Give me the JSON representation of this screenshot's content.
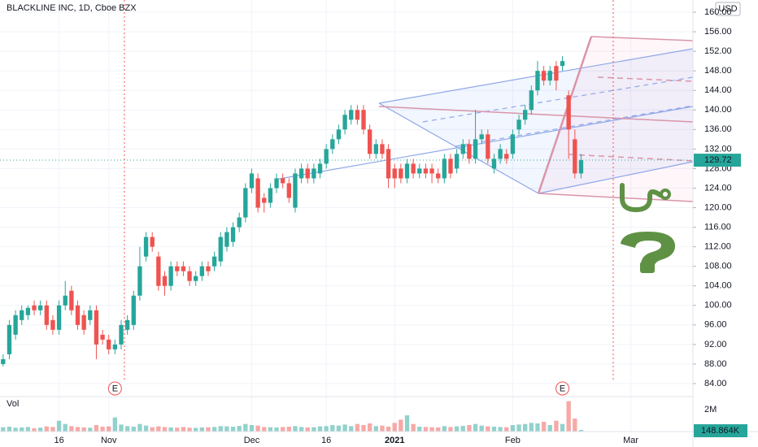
{
  "chart_data": {
    "type": "candlestick",
    "title": "BLACKLINE INC, 1D, Cboe BZX",
    "currency": "USD",
    "volume_label": "Vol",
    "open": [
      88,
      90,
      94,
      97,
      98,
      100,
      99,
      100,
      97,
      95,
      100,
      103,
      100,
      98,
      97,
      99,
      94,
      93,
      91,
      92,
      95,
      96,
      102,
      110,
      114,
      110,
      106,
      104,
      108,
      108,
      107,
      105,
      106,
      108,
      108,
      109,
      112,
      113,
      116,
      118,
      124,
      126,
      122,
      121,
      124,
      126,
      125,
      120,
      126,
      128,
      126,
      127,
      129,
      132,
      134,
      136,
      138,
      140,
      140,
      136,
      131,
      133,
      132,
      128,
      128,
      126,
      129,
      127,
      128,
      128,
      127,
      126,
      130,
      128,
      131,
      133,
      130,
      134,
      135,
      128,
      130,
      131,
      131,
      136,
      138,
      140,
      144,
      148,
      146,
      149,
      149,
      143,
      134,
      127
    ],
    "high": [
      90,
      97,
      99,
      100,
      100,
      101,
      101,
      101,
      98,
      101,
      105,
      104,
      101,
      99,
      100,
      100,
      95,
      94,
      93,
      97,
      98,
      103,
      112,
      115,
      115,
      111,
      107,
      109,
      109,
      109,
      108,
      107,
      109,
      109,
      111,
      115,
      116,
      117,
      119,
      125,
      128,
      127,
      123,
      125,
      127,
      127,
      126,
      128,
      129,
      129,
      129,
      130,
      133,
      135,
      137,
      140,
      141,
      141,
      141,
      137,
      134,
      134,
      133,
      129,
      129,
      130,
      130,
      129,
      129,
      129,
      128,
      131,
      131,
      132,
      134,
      134,
      140,
      136,
      136,
      131,
      133,
      132,
      136,
      139,
      141,
      145,
      150,
      149,
      149,
      150,
      151,
      144,
      136,
      131
    ],
    "low": [
      87.5,
      89,
      93,
      96,
      97,
      98,
      98,
      95,
      94,
      94,
      99,
      98,
      95,
      94,
      96,
      89,
      92,
      90,
      90,
      91,
      94,
      95,
      101,
      109,
      111,
      103,
      102,
      103,
      106,
      106,
      104,
      104,
      105,
      106,
      107,
      108,
      111,
      112,
      115,
      117,
      123,
      119,
      119,
      120,
      123,
      124,
      121,
      119,
      125,
      125,
      125,
      126,
      128,
      131,
      133,
      135,
      137,
      137,
      135,
      130,
      130,
      130,
      124,
      124,
      125,
      125,
      126,
      126,
      126,
      125,
      125,
      125,
      126,
      127,
      130,
      129,
      129,
      133,
      129,
      127,
      129,
      129,
      130,
      135,
      137,
      139,
      143,
      145,
      145,
      144,
      148,
      130,
      126,
      126
    ],
    "close": [
      89,
      96,
      98,
      99,
      99.5,
      99,
      100,
      96,
      95,
      100,
      102,
      99,
      96,
      95,
      99,
      92,
      93,
      91,
      92,
      96,
      97,
      102,
      108,
      114,
      112,
      104,
      104,
      108,
      107,
      107,
      105,
      106,
      108,
      107,
      110,
      114,
      115,
      116,
      118,
      124,
      127,
      120,
      121,
      124,
      126,
      125,
      122,
      127,
      128,
      126,
      128,
      129,
      132,
      134,
      136,
      139,
      140,
      138,
      136,
      131,
      133,
      131,
      126,
      126,
      126,
      129,
      127,
      128,
      127,
      127,
      126,
      130,
      127,
      131,
      133,
      130,
      134,
      135,
      130,
      130,
      132,
      130,
      135,
      138,
      140,
      144,
      148,
      146,
      148,
      146,
      150,
      136,
      127,
      129.72
    ],
    "volume": [
      400000,
      450000,
      350000,
      380000,
      420000,
      300000,
      360000,
      480000,
      420000,
      1000000,
      700000,
      500000,
      420000,
      380000,
      350000,
      600000,
      450000,
      480000,
      1300000,
      650000,
      500000,
      450000,
      700000,
      550000,
      400000,
      480000,
      420000,
      380000,
      360000,
      420000,
      350000,
      330000,
      380000,
      400000,
      420000,
      500000,
      480000,
      450000,
      520000,
      700000,
      600000,
      550000,
      420000,
      400000,
      380000,
      420000,
      450000,
      500000,
      420000,
      380000,
      400000,
      480000,
      500000,
      600000,
      550000,
      650000,
      500000,
      700000,
      600000,
      750000,
      500000,
      550000,
      450000,
      800000,
      1100000,
      1500000,
      700000,
      450000,
      420000,
      400000,
      380000,
      500000,
      420000,
      480000,
      520000,
      600000,
      700000,
      550000,
      480000,
      450000,
      420000,
      400000,
      600000,
      650000,
      700000,
      800000,
      750000,
      900000,
      600000,
      1000000,
      700000,
      2800000,
      1200000,
      148864
    ],
    "volume_value_labels": {
      "93": "148.864K"
    },
    "ylim": [
      82,
      162.5
    ],
    "yticks": [
      {
        "value": 84,
        "label": "84.00"
      },
      {
        "value": 88,
        "label": "88.00"
      },
      {
        "value": 92,
        "label": "92.00"
      },
      {
        "value": 96,
        "label": "96.00"
      },
      {
        "value": 100,
        "label": "100.00"
      },
      {
        "value": 104,
        "label": "104.00"
      },
      {
        "value": 108,
        "label": "108.00"
      },
      {
        "value": 112,
        "label": "112.00"
      },
      {
        "value": 116,
        "label": "116.00"
      },
      {
        "value": 120,
        "label": "120.00"
      },
      {
        "value": 124,
        "label": "124.00"
      },
      {
        "value": 128,
        "label": "128.00"
      },
      {
        "value": 132,
        "label": "132.00"
      },
      {
        "value": 136,
        "label": "136.00"
      },
      {
        "value": 140,
        "label": "140.00"
      },
      {
        "value": 144,
        "label": "144.00"
      },
      {
        "value": 148,
        "label": "148.00"
      },
      {
        "value": 152,
        "label": "152.00"
      },
      {
        "value": 156,
        "label": "156.00"
      },
      {
        "value": 160,
        "label": "160.00"
      }
    ],
    "vlim": [
      0,
      3000000
    ],
    "vticks": [
      {
        "value": 2000000,
        "label": "2M"
      }
    ],
    "xlim": [
      -0.5,
      111
    ],
    "xticks": [
      {
        "value": 9,
        "label": "16"
      },
      {
        "value": 17,
        "label": "Nov"
      },
      {
        "value": 40,
        "label": "Dec"
      },
      {
        "value": 52,
        "label": "16"
      },
      {
        "value": 63,
        "label": "2021"
      },
      {
        "value": 82,
        "label": "Feb"
      },
      {
        "value": 101,
        "label": "Mar"
      }
    ],
    "earnings": [
      {
        "x": 18,
        "label": "E"
      },
      {
        "x": 90,
        "label": "E"
      }
    ],
    "up_color": "#26a69a",
    "down_color": "#ef5350"
  }
}
